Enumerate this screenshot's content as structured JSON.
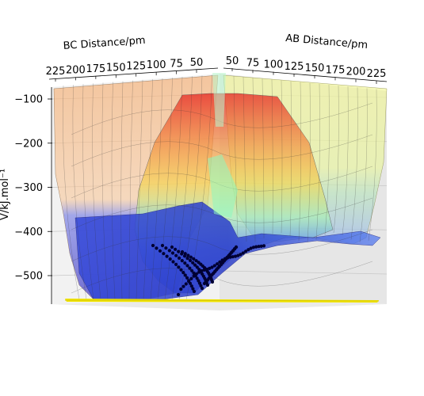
{
  "chart_data": {
    "type": "surface3d",
    "title": "",
    "axes": {
      "bc": {
        "label": "BC Distance/pm",
        "ticks": [
          "225",
          "200",
          "175",
          "150",
          "125",
          "100",
          "75",
          "50"
        ]
      },
      "ab": {
        "label": "AB Distance/pm",
        "ticks": [
          "50",
          "75",
          "100",
          "125",
          "150",
          "175",
          "200",
          "225"
        ]
      },
      "z": {
        "label": "V/kJ.mol⁻¹",
        "ticks": [
          "−100",
          "−200",
          "−300",
          "−400",
          "−500"
        ],
        "values": [
          -100,
          -200,
          -300,
          -400,
          -500
        ]
      }
    },
    "surface": {
      "colormap": "jet",
      "alpha": 0.4,
      "zlim": [
        -570,
        -60
      ]
    },
    "trajectory": {
      "color": "#000033",
      "marker": "point"
    },
    "contour_floor": {
      "color": "#ffee00"
    },
    "grid": true
  }
}
